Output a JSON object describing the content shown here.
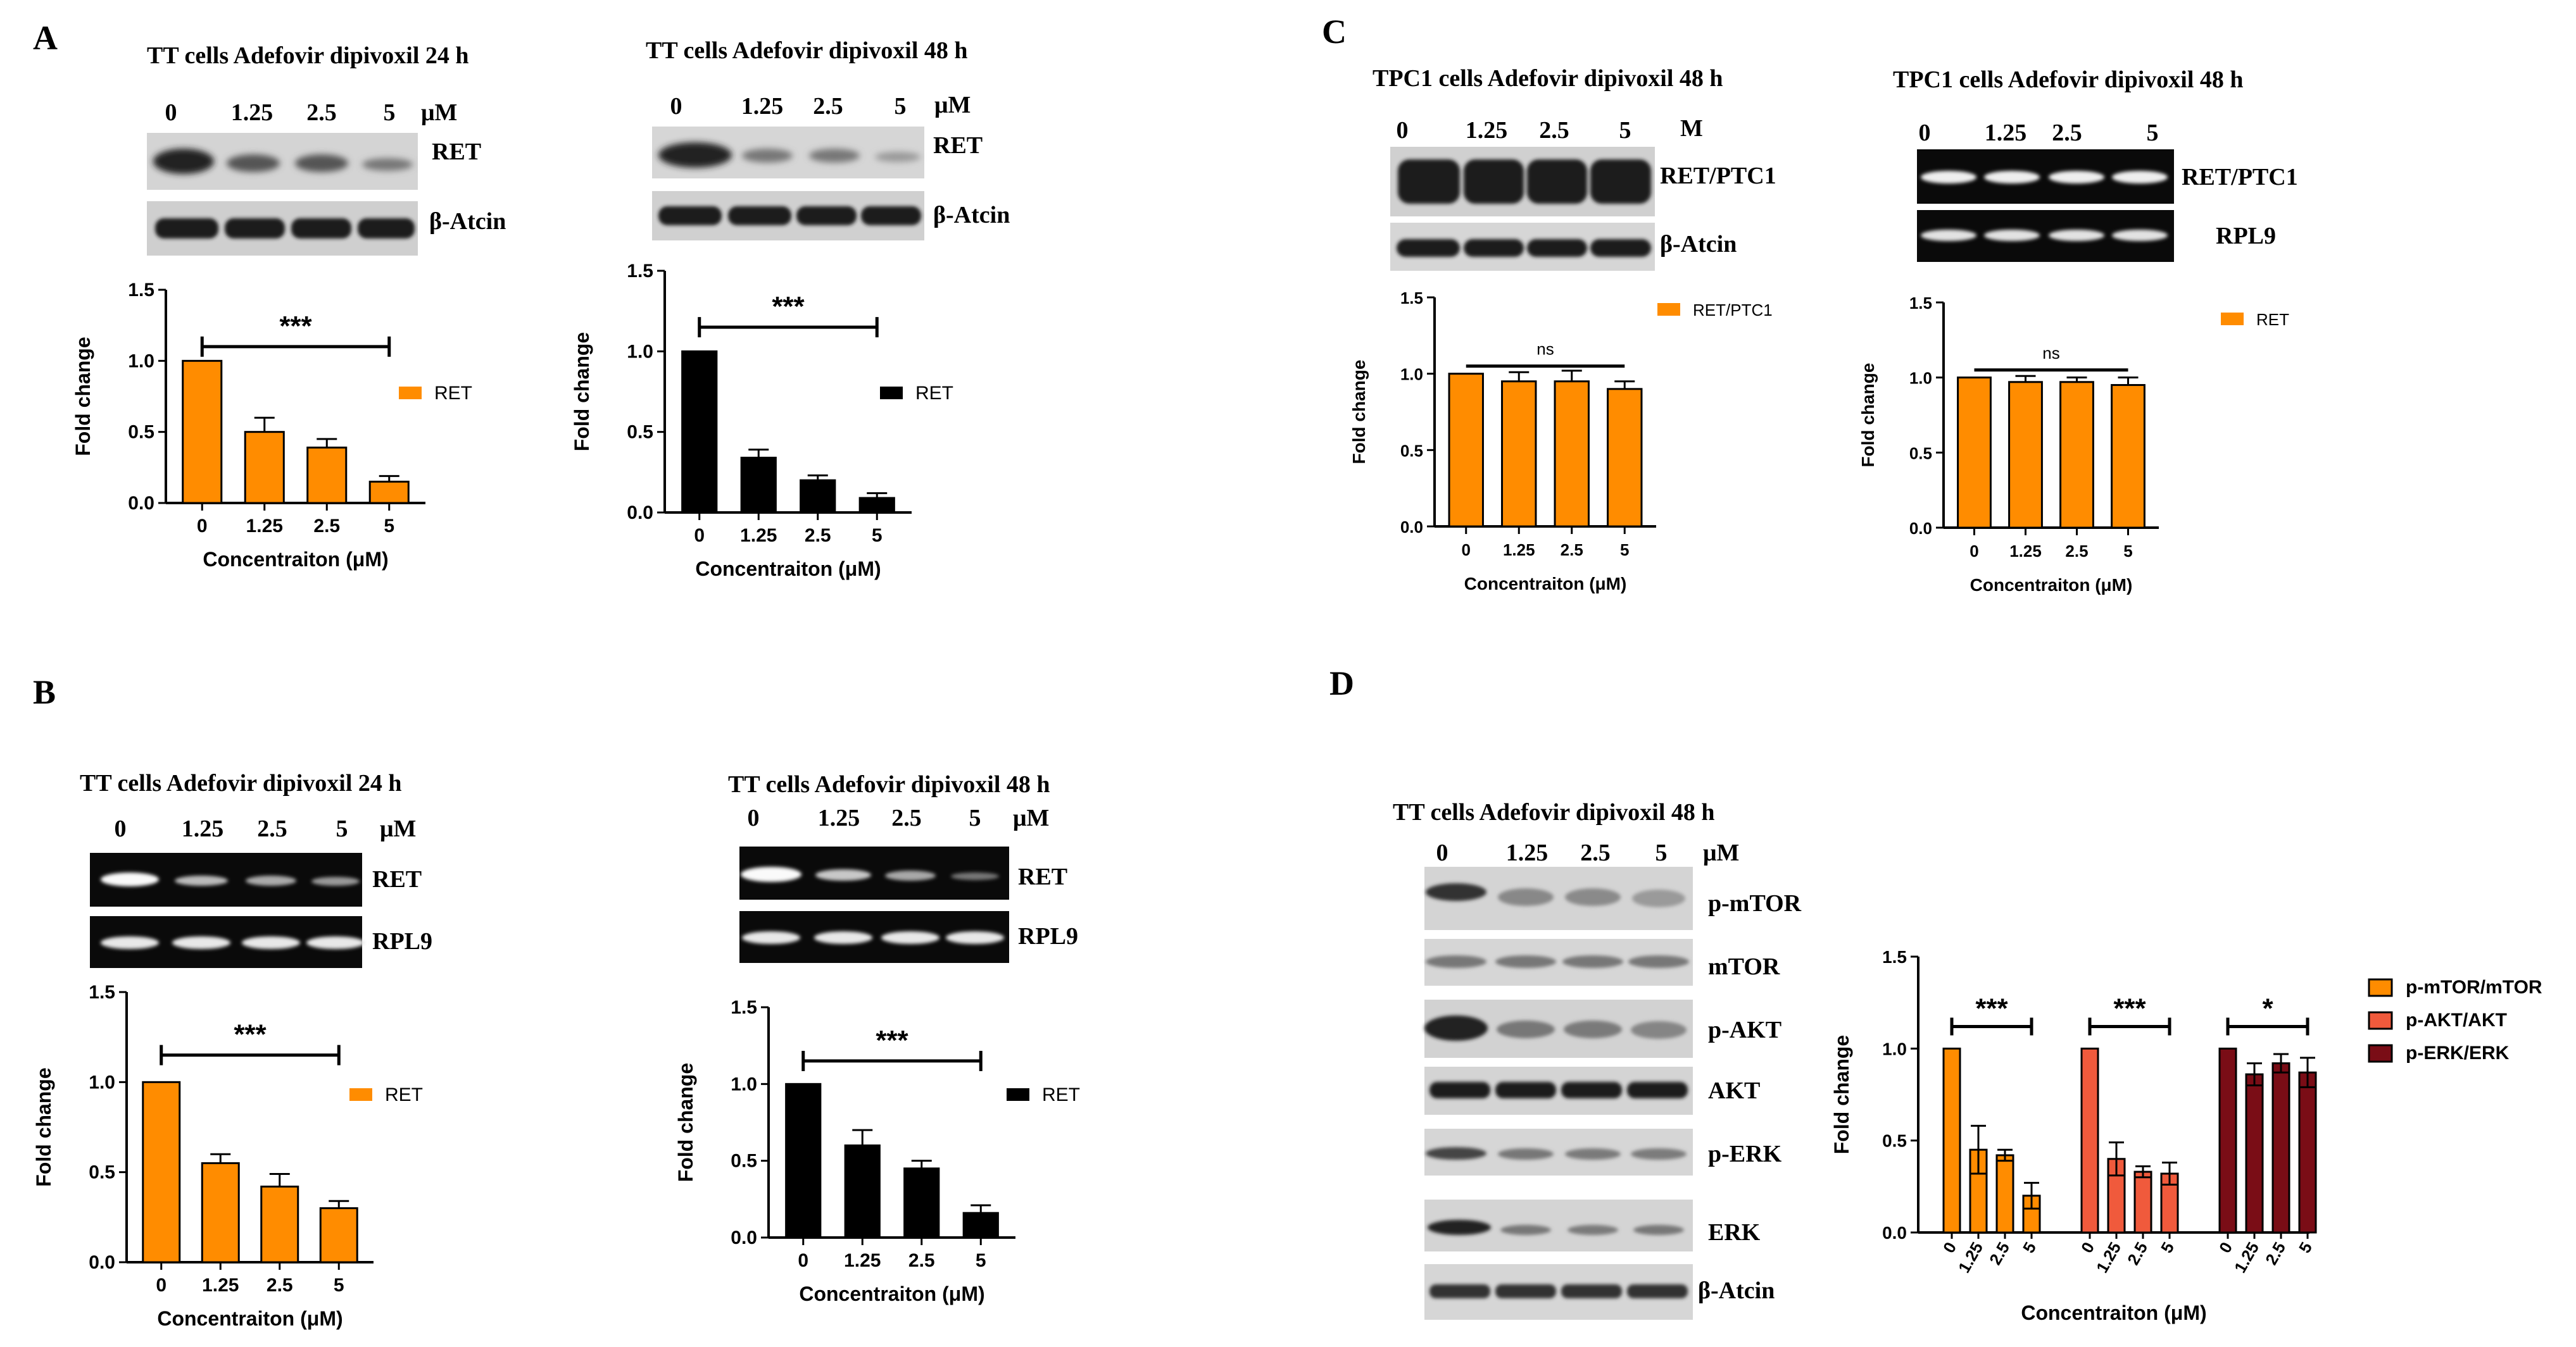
{
  "colors": {
    "orange": "#ff8c00",
    "black": "#000000",
    "red": "#f05a3c",
    "darkred": "#7a0d16"
  },
  "panels": {
    "A": {
      "letter": "A",
      "left": {
        "title": "TT cells Adefovir dipivoxil 24 h",
        "lanes": [
          "0",
          "1.25",
          "2.5",
          "5"
        ],
        "unit": "μM",
        "bands": [
          "RET",
          "β-Atcin"
        ],
        "sig": "***",
        "legend": "RET",
        "color": "orange",
        "yticks": [
          "0.0",
          "0.5",
          "1.0",
          "1.5"
        ],
        "ylim": [
          0,
          1.5
        ],
        "ylabel": "Fold change",
        "xlabel": "Concentraiton (μM)",
        "categories": [
          "0",
          "1.25",
          "2.5",
          "5"
        ],
        "values": [
          1.0,
          0.5,
          0.39,
          0.15
        ],
        "errors": [
          0,
          0.1,
          0.06,
          0.04
        ]
      },
      "right": {
        "title": "TT cells Adefovir dipivoxil 48 h",
        "lanes": [
          "0",
          "1.25",
          "2.5",
          "5"
        ],
        "unit": "μM",
        "bands": [
          "RET",
          "β-Atcin"
        ],
        "sig": "***",
        "legend": "RET",
        "color": "black",
        "yticks": [
          "0.0",
          "0.5",
          "1.0",
          "1.5"
        ],
        "ylim": [
          0,
          1.5
        ],
        "ylabel": "Fold change",
        "xlabel": "Concentraiton (μM)",
        "categories": [
          "0",
          "1.25",
          "2.5",
          "5"
        ],
        "values": [
          1.0,
          0.34,
          0.2,
          0.09
        ],
        "errors": [
          0,
          0.05,
          0.03,
          0.03
        ]
      }
    },
    "B": {
      "letter": "B",
      "left": {
        "title": "TT cells Adefovir dipivoxil 24 h",
        "lanes": [
          "0",
          "1.25",
          "2.5",
          "5"
        ],
        "unit": "μM",
        "bands": [
          "RET",
          "RPL9"
        ],
        "sig": "***",
        "legend": "RET",
        "color": "orange",
        "yticks": [
          "0.0",
          "0.5",
          "1.0",
          "1.5"
        ],
        "ylim": [
          0,
          1.5
        ],
        "ylabel": "Fold change",
        "xlabel": "Concentraiton (μM)",
        "categories": [
          "0",
          "1.25",
          "2.5",
          "5"
        ],
        "values": [
          1.0,
          0.55,
          0.42,
          0.3
        ],
        "errors": [
          0,
          0.05,
          0.07,
          0.04
        ]
      },
      "right": {
        "title": "TT cells Adefovir dipivoxil 48 h",
        "lanes": [
          "0",
          "1.25",
          "2.5",
          "5"
        ],
        "unit": "μM",
        "bands": [
          "RET",
          "RPL9"
        ],
        "sig": "***",
        "legend": "RET",
        "color": "black",
        "yticks": [
          "0.0",
          "0.5",
          "1.0",
          "1.5"
        ],
        "ylim": [
          0,
          1.5
        ],
        "ylabel": "Fold change",
        "xlabel": "Concentraiton (μM)",
        "categories": [
          "0",
          "1.25",
          "2.5",
          "5"
        ],
        "values": [
          1.0,
          0.6,
          0.45,
          0.16
        ],
        "errors": [
          0,
          0.1,
          0.05,
          0.05
        ]
      }
    },
    "C": {
      "letter": "C",
      "left": {
        "title": "TPC1 cells Adefovir dipivoxil 48 h",
        "lanes": [
          "0",
          "1.25",
          "2.5",
          "5"
        ],
        "unit": "M",
        "bands": [
          "RET/PTC1",
          "β-Atcin"
        ],
        "sig": "ns",
        "legend": "RET/PTC1",
        "color": "orange",
        "yticks": [
          "0.0",
          "0.5",
          "1.0",
          "1.5"
        ],
        "ylim": [
          0,
          1.5
        ],
        "ylabel": "Fold change",
        "xlabel": "Concentraiton (μM)",
        "categories": [
          "0",
          "1.25",
          "2.5",
          "5"
        ],
        "values": [
          1.0,
          0.95,
          0.95,
          0.9
        ],
        "errors": [
          0,
          0.06,
          0.07,
          0.05
        ]
      },
      "right": {
        "title": "TPC1 cells Adefovir dipivoxil 48 h",
        "lanes": [
          "0",
          "1.25",
          "2.5",
          "5"
        ],
        "unit": "",
        "bands": [
          "RET/PTC1",
          "RPL9"
        ],
        "sig": "ns",
        "legend": "RET",
        "color": "orange",
        "yticks": [
          "0.0",
          "0.5",
          "1.0",
          "1.5"
        ],
        "ylim": [
          0,
          1.5
        ],
        "ylabel": "Fold change",
        "xlabel": "Concentraiton (μM)",
        "categories": [
          "0",
          "1.25",
          "2.5",
          "5"
        ],
        "values": [
          1.0,
          0.97,
          0.97,
          0.95
        ],
        "errors": [
          0,
          0.04,
          0.03,
          0.05
        ]
      }
    },
    "D": {
      "letter": "D",
      "title": "TT cells Adefovir dipivoxil 48 h",
      "lanes": [
        "0",
        "1.25",
        "2.5",
        "5"
      ],
      "unit": "μM",
      "bands": [
        "p-mTOR",
        "mTOR",
        "p-AKT",
        "AKT",
        "p-ERK",
        "ERK",
        "β-Atcin"
      ],
      "chart": {
        "yticks": [
          "0.0",
          "0.5",
          "1.0",
          "1.5"
        ],
        "ylim": [
          0,
          1.5
        ],
        "ylabel": "Fold change",
        "xlabel": "Concentraiton (μM)",
        "categories": [
          "0",
          "1.25",
          "2.5",
          "5"
        ],
        "groups": [
          {
            "name": "p-mTOR/mTOR",
            "color": "orange",
            "sig": "***",
            "values": [
              1.0,
              0.45,
              0.42,
              0.2
            ],
            "errors": [
              0,
              0.13,
              0.03,
              0.07
            ]
          },
          {
            "name": "p-AKT/AKT",
            "color": "red",
            "sig": "***",
            "values": [
              1.0,
              0.4,
              0.33,
              0.32
            ],
            "errors": [
              0,
              0.09,
              0.03,
              0.06
            ]
          },
          {
            "name": "p-ERK/ERK",
            "color": "darkred",
            "sig": "*",
            "values": [
              1.0,
              0.86,
              0.92,
              0.87
            ],
            "errors": [
              0,
              0.06,
              0.05,
              0.08
            ]
          }
        ]
      }
    }
  },
  "chart_data": [
    {
      "type": "bar",
      "title": "",
      "categories": [
        "0",
        "1.25",
        "2.5",
        "5"
      ],
      "series": [
        {
          "name": "RET",
          "values": [
            1.0,
            0.5,
            0.39,
            0.15
          ]
        }
      ],
      "xlabel": "Concentraiton (μM)",
      "ylabel": "Fold change",
      "ylim": [
        0,
        1.5
      ]
    },
    {
      "type": "bar",
      "title": "",
      "categories": [
        "0",
        "1.25",
        "2.5",
        "5"
      ],
      "series": [
        {
          "name": "RET",
          "values": [
            1.0,
            0.34,
            0.2,
            0.09
          ]
        }
      ],
      "xlabel": "Concentraiton (μM)",
      "ylabel": "Fold change",
      "ylim": [
        0,
        1.5
      ]
    },
    {
      "type": "bar",
      "title": "",
      "categories": [
        "0",
        "1.25",
        "2.5",
        "5"
      ],
      "series": [
        {
          "name": "RET",
          "values": [
            1.0,
            0.55,
            0.42,
            0.3
          ]
        }
      ],
      "xlabel": "Concentraiton (μM)",
      "ylabel": "Fold change",
      "ylim": [
        0,
        1.5
      ]
    },
    {
      "type": "bar",
      "title": "",
      "categories": [
        "0",
        "1.25",
        "2.5",
        "5"
      ],
      "series": [
        {
          "name": "RET",
          "values": [
            1.0,
            0.6,
            0.45,
            0.16
          ]
        }
      ],
      "xlabel": "Concentraiton (μM)",
      "ylabel": "Fold change",
      "ylim": [
        0,
        1.5
      ]
    },
    {
      "type": "bar",
      "title": "",
      "categories": [
        "0",
        "1.25",
        "2.5",
        "5"
      ],
      "series": [
        {
          "name": "RET/PTC1",
          "values": [
            1.0,
            0.95,
            0.95,
            0.9
          ]
        }
      ],
      "xlabel": "Concentraiton (μM)",
      "ylabel": "Fold change",
      "ylim": [
        0,
        1.5
      ]
    },
    {
      "type": "bar",
      "title": "",
      "categories": [
        "0",
        "1.25",
        "2.5",
        "5"
      ],
      "series": [
        {
          "name": "RET",
          "values": [
            1.0,
            0.97,
            0.97,
            0.95
          ]
        }
      ],
      "xlabel": "Concentraiton (μM)",
      "ylabel": "Fold change",
      "ylim": [
        0,
        1.5
      ]
    },
    {
      "type": "bar",
      "title": "",
      "categories": [
        "0",
        "1.25",
        "2.5",
        "5"
      ],
      "series": [
        {
          "name": "p-mTOR/mTOR",
          "values": [
            1.0,
            0.45,
            0.42,
            0.2
          ]
        },
        {
          "name": "p-AKT/AKT",
          "values": [
            1.0,
            0.4,
            0.33,
            0.32
          ]
        },
        {
          "name": "p-ERK/ERK",
          "values": [
            1.0,
            0.86,
            0.92,
            0.87
          ]
        }
      ],
      "xlabel": "Concentraiton (μM)",
      "ylabel": "Fold change",
      "ylim": [
        0,
        1.5
      ]
    }
  ]
}
